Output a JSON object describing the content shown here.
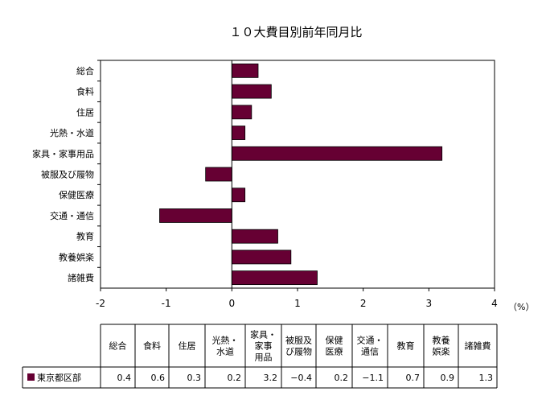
{
  "chart_data": {
    "type": "bar",
    "orientation": "horizontal",
    "title": "１０大費目別前年同月比",
    "unit_label": "（%）",
    "categories": [
      "総合",
      "食料",
      "住居",
      "光熱・水道",
      "家具・家事用品",
      "被服及び履物",
      "保健医療",
      "交通・通信",
      "教育",
      "教養娯楽",
      "諸雑費"
    ],
    "table_headers": [
      [
        "総合"
      ],
      [
        "食料"
      ],
      [
        "住居"
      ],
      [
        "光熱・",
        "水道"
      ],
      [
        "家具・",
        "家事",
        "用品"
      ],
      [
        "被服及",
        "び履物"
      ],
      [
        "保健",
        "医療"
      ],
      [
        "交通・",
        "通信"
      ],
      [
        "教育"
      ],
      [
        "教養",
        "娯楽"
      ],
      [
        "諸雑費"
      ]
    ],
    "series": [
      {
        "name": "東京都区部",
        "values": [
          0.4,
          0.6,
          0.3,
          0.2,
          3.2,
          -0.4,
          0.2,
          -1.1,
          0.7,
          0.9,
          1.3
        ],
        "value_labels": [
          "0.4",
          "0.6",
          "0.3",
          "0.2",
          "3.2",
          "−0.4",
          "0.2",
          "−1.1",
          "0.7",
          "0.9",
          "1.3"
        ]
      }
    ],
    "xlim": [
      -2,
      4
    ],
    "xticks": [
      -2,
      -1,
      0,
      1,
      2,
      3,
      4
    ],
    "xtick_labels": [
      "-2",
      "-1",
      "0",
      "1",
      "2",
      "3",
      "4"
    ],
    "bar_color": "#660033",
    "grid": false,
    "legend": "bottom-table"
  }
}
